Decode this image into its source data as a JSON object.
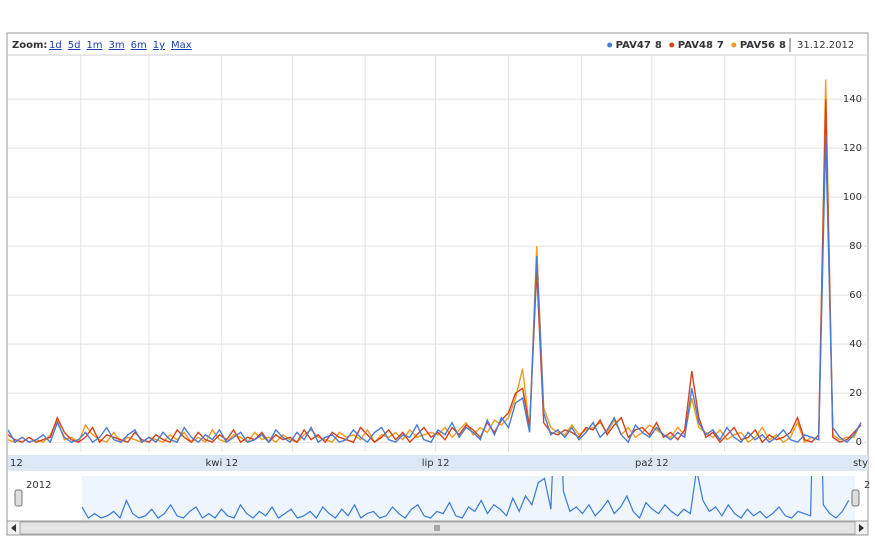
{
  "chart_data": {
    "type": "line",
    "zoom_label": "Zoom:",
    "zoom_options": [
      "1d",
      "5d",
      "1m",
      "3m",
      "6m",
      "1y",
      "Max"
    ],
    "range_label": "31.12.2012",
    "navigator_labels": [
      "2012",
      "2"
    ],
    "x": [
      0,
      3,
      6,
      9,
      12,
      15,
      18,
      21,
      24,
      27,
      30,
      33,
      36,
      39,
      42,
      45,
      48,
      51,
      54,
      57,
      60,
      63,
      66,
      69,
      72,
      75,
      78,
      81,
      84,
      87,
      90,
      93,
      96,
      99,
      102,
      105,
      108,
      111,
      114,
      117,
      120,
      123,
      126,
      129,
      132,
      135,
      138,
      141,
      144,
      147,
      150,
      153,
      156,
      159,
      162,
      165,
      168,
      171,
      174,
      177,
      180,
      183,
      186,
      189,
      192,
      195,
      198,
      201,
      204,
      207,
      210,
      213,
      216,
      219,
      222,
      225,
      228,
      231,
      234,
      237,
      240,
      243,
      246,
      249,
      252,
      255,
      258,
      261,
      264,
      267,
      270,
      273,
      276,
      279,
      282,
      285,
      288,
      291,
      294,
      297,
      300,
      303,
      306,
      309,
      312,
      315,
      318,
      321,
      324,
      327,
      330,
      333,
      336,
      339,
      342,
      345,
      348,
      351,
      354,
      357,
      360,
      363
    ],
    "xlim": [
      0,
      366
    ],
    "xticks": [
      {
        "value": 0,
        "label": "12"
      },
      {
        "value": 91,
        "label": "kwi 12"
      },
      {
        "value": 182,
        "label": "lip 12"
      },
      {
        "value": 274,
        "label": "paź 12"
      },
      {
        "value": 366,
        "label": "sty"
      }
    ],
    "xgrid": [
      31,
      60,
      91,
      121,
      152,
      182,
      213,
      244,
      274,
      305,
      335
    ],
    "ylim": [
      -4,
      158
    ],
    "yticks": [
      0,
      20,
      40,
      60,
      80,
      100,
      120,
      140
    ],
    "grid": true,
    "series": [
      {
        "name": "PAV47",
        "color": "#4a7bd6",
        "values": [
          5,
          0,
          2,
          0,
          1,
          3,
          0,
          8,
          2,
          0,
          1,
          4,
          0,
          2,
          6,
          1,
          0,
          3,
          5,
          0,
          2,
          0,
          4,
          1,
          0,
          6,
          2,
          0,
          3,
          1,
          5,
          0,
          2,
          4,
          0,
          1,
          3,
          0,
          5,
          2,
          0,
          4,
          1,
          6,
          0,
          2,
          3,
          0,
          1,
          5,
          2,
          0,
          4,
          6,
          1,
          0,
          3,
          2,
          7,
          1,
          0,
          5,
          3,
          8,
          2,
          6,
          4,
          1,
          9,
          3,
          10,
          6,
          16,
          18,
          4,
          76,
          12,
          3,
          5,
          2,
          6,
          1,
          4,
          8,
          2,
          5,
          10,
          3,
          0,
          7,
          4,
          2,
          6,
          3,
          1,
          4,
          2,
          22,
          8,
          3,
          5,
          1,
          6,
          2,
          0,
          4,
          1,
          3,
          0,
          2,
          5,
          1,
          0,
          3,
          2,
          1,
          125,
          6,
          2,
          0,
          3,
          8
        ]
      },
      {
        "name": "PAV48",
        "color": "#d6401a",
        "values": [
          3,
          1,
          0,
          2,
          0,
          1,
          2,
          10,
          4,
          1,
          0,
          2,
          6,
          0,
          3,
          2,
          1,
          0,
          4,
          1,
          0,
          3,
          1,
          0,
          5,
          2,
          0,
          4,
          1,
          0,
          3,
          1,
          5,
          0,
          2,
          1,
          4,
          0,
          3,
          1,
          2,
          0,
          5,
          1,
          3,
          0,
          4,
          2,
          1,
          0,
          6,
          3,
          0,
          2,
          5,
          1,
          4,
          0,
          3,
          6,
          2,
          4,
          1,
          6,
          3,
          7,
          5,
          2,
          8,
          4,
          9,
          12,
          20,
          22,
          6,
          70,
          8,
          4,
          3,
          5,
          4,
          2,
          6,
          5,
          9,
          3,
          7,
          10,
          2,
          5,
          6,
          3,
          8,
          2,
          4,
          1,
          5,
          29,
          10,
          2,
          4,
          0,
          3,
          6,
          1,
          2,
          5,
          0,
          3,
          1,
          2,
          4,
          10,
          1,
          0,
          3,
          140,
          2,
          0,
          1,
          4,
          7
        ]
      },
      {
        "name": "PAV56",
        "color": "#f29a1a",
        "values": [
          1,
          0,
          2,
          0,
          1,
          0,
          3,
          9,
          1,
          2,
          0,
          7,
          3,
          1,
          0,
          4,
          0,
          2,
          1,
          0,
          2,
          1,
          0,
          3,
          1,
          4,
          0,
          2,
          0,
          5,
          1,
          0,
          3,
          2,
          0,
          4,
          1,
          2,
          0,
          3,
          1,
          0,
          3,
          5,
          2,
          1,
          0,
          4,
          2,
          3,
          1,
          5,
          0,
          3,
          2,
          4,
          1,
          5,
          2,
          3,
          4,
          3,
          6,
          2,
          5,
          8,
          3,
          6,
          4,
          9,
          7,
          10,
          18,
          30,
          5,
          80,
          14,
          6,
          4,
          3,
          7,
          3,
          5,
          6,
          8,
          4,
          9,
          3,
          6,
          2,
          4,
          7,
          5,
          3,
          2,
          6,
          3,
          18,
          6,
          4,
          2,
          5,
          1,
          3,
          4,
          0,
          2,
          6,
          1,
          3,
          0,
          2,
          8,
          0,
          2,
          1,
          148,
          3,
          1,
          2,
          2,
          8
        ]
      }
    ]
  }
}
